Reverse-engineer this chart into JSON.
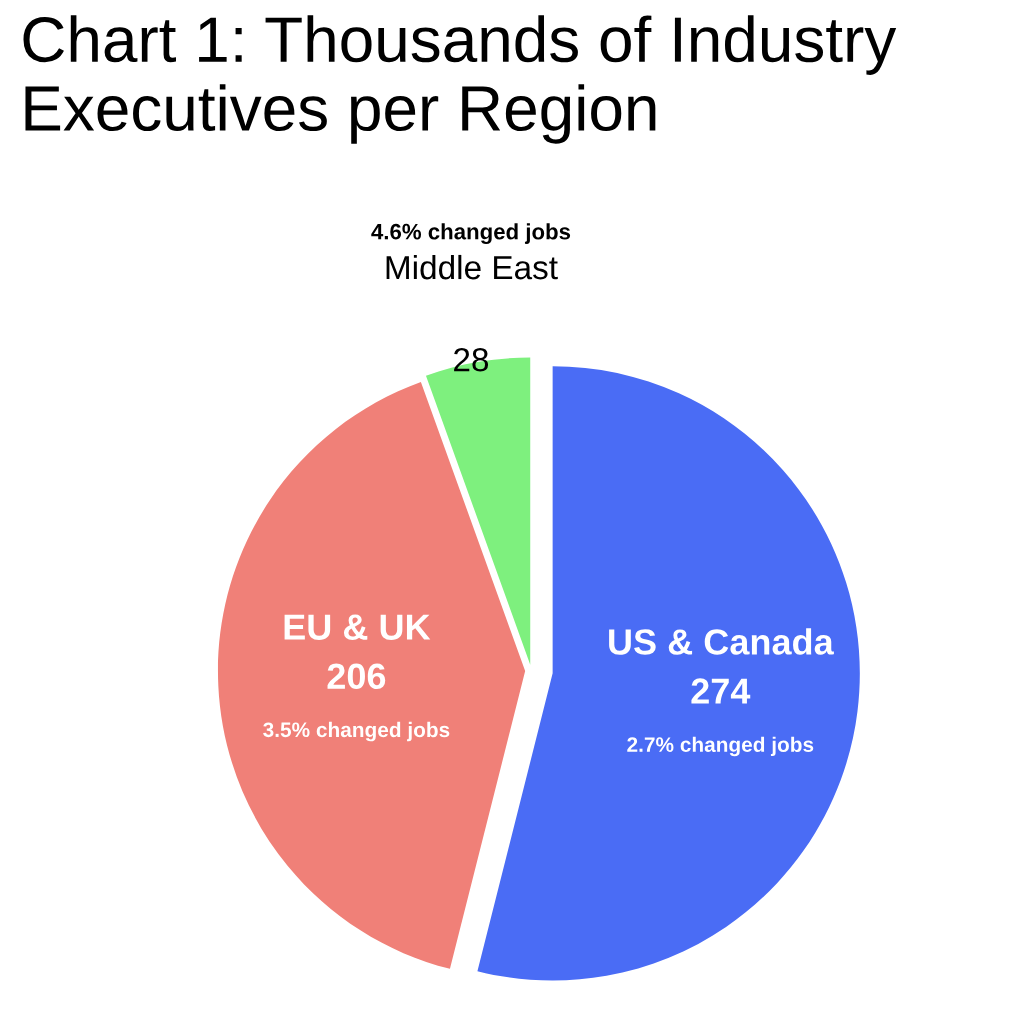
{
  "chart_data": {
    "type": "pie",
    "title": "Chart 1: Thousands of Industry Executives per Region",
    "categories": [
      "US & Canada",
      "EU & UK",
      "Middle East"
    ],
    "values": [
      274,
      206,
      28
    ],
    "colors": [
      "#4a6cf5",
      "#f08078",
      "#7ef07e"
    ],
    "data_labels": true,
    "annotations": [
      "2.7% changed jobs",
      "3.5% changed jobs",
      "4.6% changed jobs"
    ]
  }
}
